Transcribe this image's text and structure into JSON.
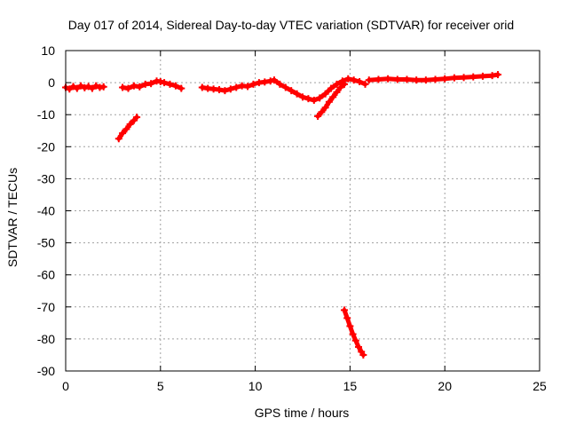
{
  "chart_data": {
    "type": "scatter",
    "title": "Day 017 of 2014, Sidereal Day-to-day VTEC variation (SDTVAR) for receiver orid",
    "xlabel": "GPS time / hours",
    "ylabel": "SDTVAR / TECUs",
    "xlim": [
      0,
      25
    ],
    "ylim": [
      -90,
      10
    ],
    "xticks": [
      0,
      5,
      10,
      15,
      20,
      25
    ],
    "yticks": [
      10,
      0,
      -10,
      -20,
      -30,
      -40,
      -50,
      -60,
      -70,
      -80,
      -90
    ],
    "grid": true,
    "marker": "plus",
    "color": "#ff0000",
    "series": [
      {
        "name": "segment-1",
        "points": [
          [
            0.0,
            -1.5
          ],
          [
            0.2,
            -2.0
          ],
          [
            0.4,
            -1.2
          ],
          [
            0.6,
            -1.8
          ],
          [
            0.8,
            -1.0
          ],
          [
            1.0,
            -1.6
          ],
          [
            1.2,
            -1.2
          ],
          [
            1.4,
            -1.8
          ],
          [
            1.6,
            -1.0
          ],
          [
            1.8,
            -1.5
          ],
          [
            2.0,
            -1.3
          ]
        ]
      },
      {
        "name": "segment-2",
        "points": [
          [
            3.0,
            -1.5
          ],
          [
            3.3,
            -1.8
          ],
          [
            3.6,
            -1.0
          ],
          [
            3.9,
            -1.3
          ],
          [
            4.2,
            -0.5
          ],
          [
            4.5,
            -0.3
          ],
          [
            4.8,
            0.5
          ],
          [
            5.0,
            0.3
          ],
          [
            5.2,
            0.0
          ],
          [
            5.5,
            -0.5
          ],
          [
            5.8,
            -1.0
          ],
          [
            6.1,
            -1.8
          ]
        ]
      },
      {
        "name": "segment-3",
        "points": [
          [
            2.8,
            -17.5
          ],
          [
            3.0,
            -15.8
          ],
          [
            3.2,
            -14.5
          ],
          [
            3.4,
            -13.0
          ],
          [
            3.6,
            -11.8
          ],
          [
            3.75,
            -10.8
          ]
        ]
      },
      {
        "name": "segment-4",
        "points": [
          [
            7.2,
            -1.5
          ],
          [
            7.5,
            -1.8
          ],
          [
            7.8,
            -2.0
          ],
          [
            8.1,
            -2.2
          ],
          [
            8.4,
            -2.5
          ],
          [
            8.7,
            -2.0
          ],
          [
            9.0,
            -1.5
          ],
          [
            9.3,
            -1.0
          ],
          [
            9.6,
            -1.2
          ],
          [
            9.9,
            -0.5
          ],
          [
            10.2,
            0.0
          ],
          [
            10.5,
            0.2
          ],
          [
            10.8,
            0.5
          ],
          [
            11.0,
            0.8
          ],
          [
            11.3,
            -0.5
          ],
          [
            11.6,
            -1.5
          ],
          [
            11.9,
            -2.5
          ],
          [
            12.2,
            -3.5
          ],
          [
            12.5,
            -4.5
          ],
          [
            12.8,
            -5.0
          ],
          [
            13.1,
            -5.5
          ],
          [
            13.4,
            -4.8
          ],
          [
            13.7,
            -3.5
          ],
          [
            14.0,
            -1.8
          ],
          [
            14.3,
            -0.5
          ],
          [
            14.6,
            0.5
          ],
          [
            14.9,
            1.2
          ],
          [
            15.2,
            0.8
          ],
          [
            15.5,
            0.3
          ],
          [
            15.8,
            -0.5
          ]
        ]
      },
      {
        "name": "segment-5",
        "points": [
          [
            13.3,
            -10.5
          ],
          [
            13.5,
            -9.2
          ],
          [
            13.7,
            -7.8
          ],
          [
            13.9,
            -6.0
          ],
          [
            14.1,
            -4.5
          ],
          [
            14.3,
            -3.0
          ],
          [
            14.5,
            -1.5
          ],
          [
            14.7,
            -0.5
          ]
        ]
      },
      {
        "name": "segment-6",
        "points": [
          [
            14.7,
            -71.0
          ],
          [
            14.85,
            -73.5
          ],
          [
            15.0,
            -76.0
          ],
          [
            15.15,
            -78.5
          ],
          [
            15.3,
            -80.5
          ],
          [
            15.45,
            -82.5
          ],
          [
            15.6,
            -84.0
          ],
          [
            15.7,
            -85.0
          ]
        ]
      },
      {
        "name": "segment-7",
        "points": [
          [
            16.0,
            0.8
          ],
          [
            16.5,
            1.0
          ],
          [
            17.0,
            1.2
          ],
          [
            17.5,
            1.0
          ],
          [
            18.0,
            1.0
          ],
          [
            18.5,
            0.8
          ],
          [
            19.0,
            0.8
          ],
          [
            19.5,
            1.0
          ],
          [
            20.0,
            1.2
          ],
          [
            20.5,
            1.5
          ],
          [
            21.0,
            1.6
          ],
          [
            21.5,
            1.8
          ],
          [
            22.0,
            2.0
          ],
          [
            22.5,
            2.2
          ],
          [
            22.8,
            2.5
          ]
        ]
      }
    ]
  }
}
